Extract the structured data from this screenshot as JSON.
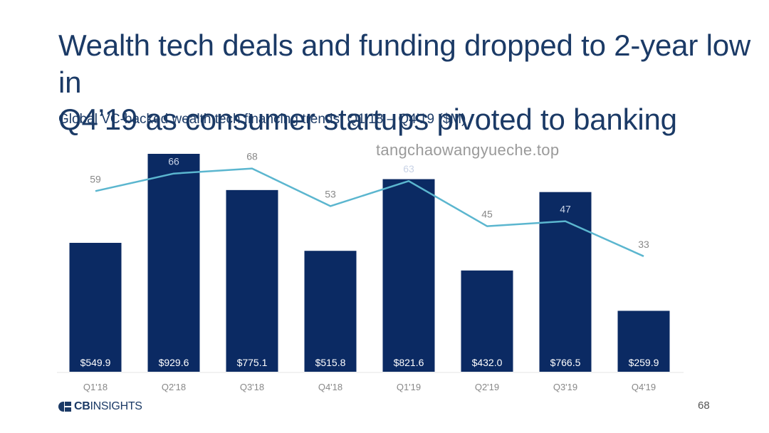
{
  "title_line1": "Wealth tech deals and funding dropped to 2-year low in",
  "title_line2": "Q4’19 as consumer startups pivoted to banking",
  "subtitle": "Global VC-backed wealth tech financing trends, Q1’18 – Q4’19 ($M)",
  "watermark": "tangchaowangyueche.top",
  "logo": {
    "bold": "CB",
    "rest": "INSIGHTS"
  },
  "page_number": "68",
  "colors": {
    "bar": "#0b2a63",
    "line": "#5bb6cf",
    "title": "#1b3a66",
    "label": "#888888"
  },
  "chart_data": {
    "type": "bar",
    "categories": [
      "Q1'18",
      "Q2'18",
      "Q3'18",
      "Q4'18",
      "Q1'19",
      "Q2'19",
      "Q3'19",
      "Q4'19"
    ],
    "series": [
      {
        "type": "bar",
        "values": [
          549.9,
          929.6,
          775.1,
          515.8,
          821.6,
          432.0,
          766.5,
          259.9
        ],
        "labels": [
          "$549.9",
          "$929.6",
          "$775.1",
          "$515.8",
          "$821.6",
          "$432.0",
          "$766.5",
          "$259.9"
        ]
      },
      {
        "type": "line",
        "values": [
          59,
          66,
          68,
          53,
          63,
          45,
          47,
          33
        ],
        "labels": [
          "59",
          "66",
          "68",
          "53",
          "63",
          "45",
          "47",
          "33"
        ]
      }
    ],
    "title": "Global VC-backed wealth tech financing trends, Q1’18 – Q4’19 ($M)",
    "xlabel": "",
    "ylabel": "",
    "legend": "none",
    "grid": false
  }
}
